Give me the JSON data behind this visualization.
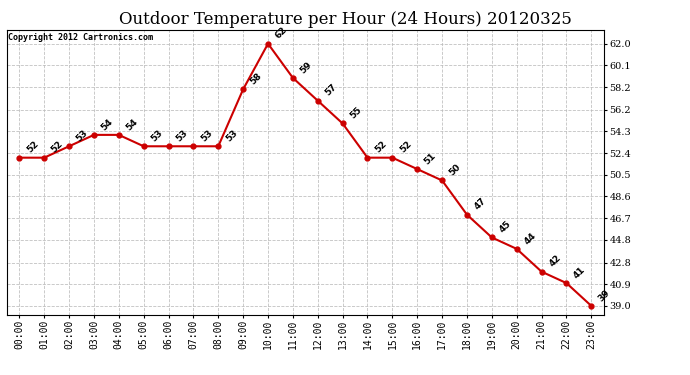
{
  "title": "Outdoor Temperature per Hour (24 Hours) 20120325",
  "copyright": "Copyright 2012 Cartronics.com",
  "hours": [
    "00:00",
    "01:00",
    "02:00",
    "03:00",
    "04:00",
    "05:00",
    "06:00",
    "07:00",
    "08:00",
    "09:00",
    "10:00",
    "11:00",
    "12:00",
    "13:00",
    "14:00",
    "15:00",
    "16:00",
    "17:00",
    "18:00",
    "19:00",
    "20:00",
    "21:00",
    "22:00",
    "23:00"
  ],
  "temps": [
    52,
    52,
    53,
    54,
    54,
    53,
    53,
    53,
    53,
    58,
    62,
    59,
    57,
    55,
    52,
    52,
    51,
    50,
    47,
    45,
    44,
    42,
    41,
    39
  ],
  "line_color": "#cc0000",
  "marker_color": "#cc0000",
  "background_color": "#ffffff",
  "grid_color": "#bbbbbb",
  "yticks": [
    39.0,
    40.9,
    42.8,
    44.8,
    46.7,
    48.6,
    50.5,
    52.4,
    54.3,
    56.2,
    58.2,
    60.1,
    62.0
  ],
  "ymin": 38.2,
  "ymax": 63.2,
  "title_fontsize": 12,
  "label_fontsize": 6.5,
  "tick_fontsize": 7
}
